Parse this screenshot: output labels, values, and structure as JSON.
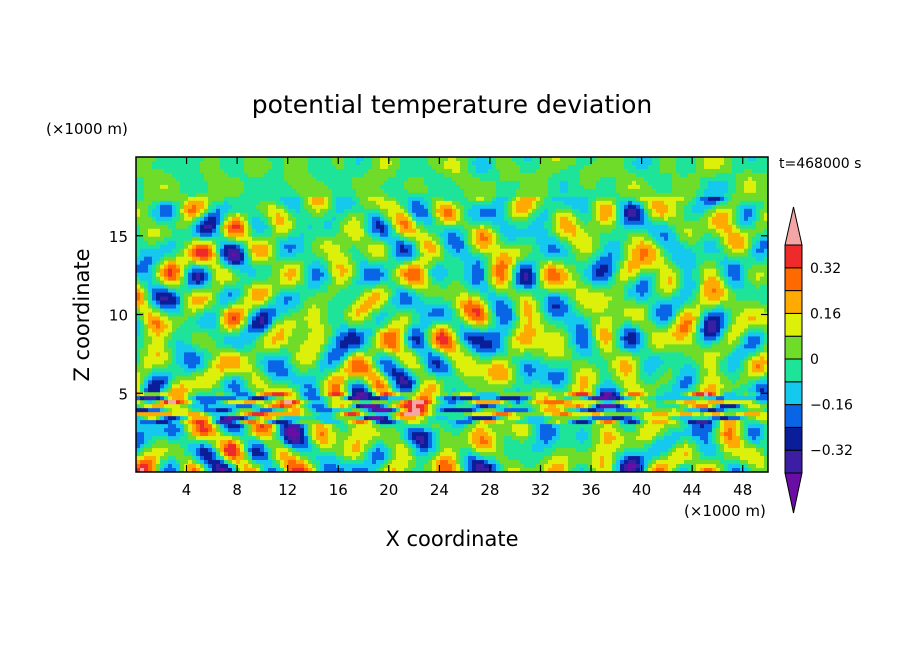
{
  "chart_data": {
    "type": "heatmap",
    "title": "potential temperature deviation",
    "xlabel": "X coordinate",
    "ylabel": "Z coordinate",
    "x_unit_label": "(×1000 m)",
    "y_unit_label": "(×1000 m)",
    "time_label": "t=468000 s",
    "xlim": [
      0,
      50
    ],
    "ylim": [
      0,
      20
    ],
    "x_ticks": [
      4,
      8,
      12,
      16,
      20,
      24,
      28,
      32,
      36,
      40,
      44,
      48
    ],
    "y_ticks": [
      5,
      10,
      15
    ],
    "x_tick_labels": [
      "4",
      "8",
      "12",
      "16",
      "20",
      "24",
      "28",
      "32",
      "36",
      "40",
      "44",
      "48"
    ],
    "y_tick_labels": [
      "5",
      "10",
      "15"
    ],
    "colorbar": {
      "levels": [
        -0.4,
        -0.32,
        -0.24,
        -0.16,
        -0.08,
        0,
        0.08,
        0.16,
        0.24,
        0.32,
        0.4
      ],
      "colors": [
        "#6a0da4",
        "#3c1ea4",
        "#0a1e9a",
        "#0a64e6",
        "#14c8ee",
        "#1ee49a",
        "#6edc28",
        "#dcf00a",
        "#ffaa00",
        "#ff6a00",
        "#ee2a2a",
        "#f4a6a6"
      ],
      "labels": [
        {
          "value": 0.32,
          "text": "0.32"
        },
        {
          "value": 0.16,
          "text": "0.16"
        },
        {
          "value": 0,
          "text": "0"
        },
        {
          "value": -0.16,
          "text": "−0.16"
        },
        {
          "value": -0.32,
          "text": "−0.32"
        }
      ]
    }
  }
}
